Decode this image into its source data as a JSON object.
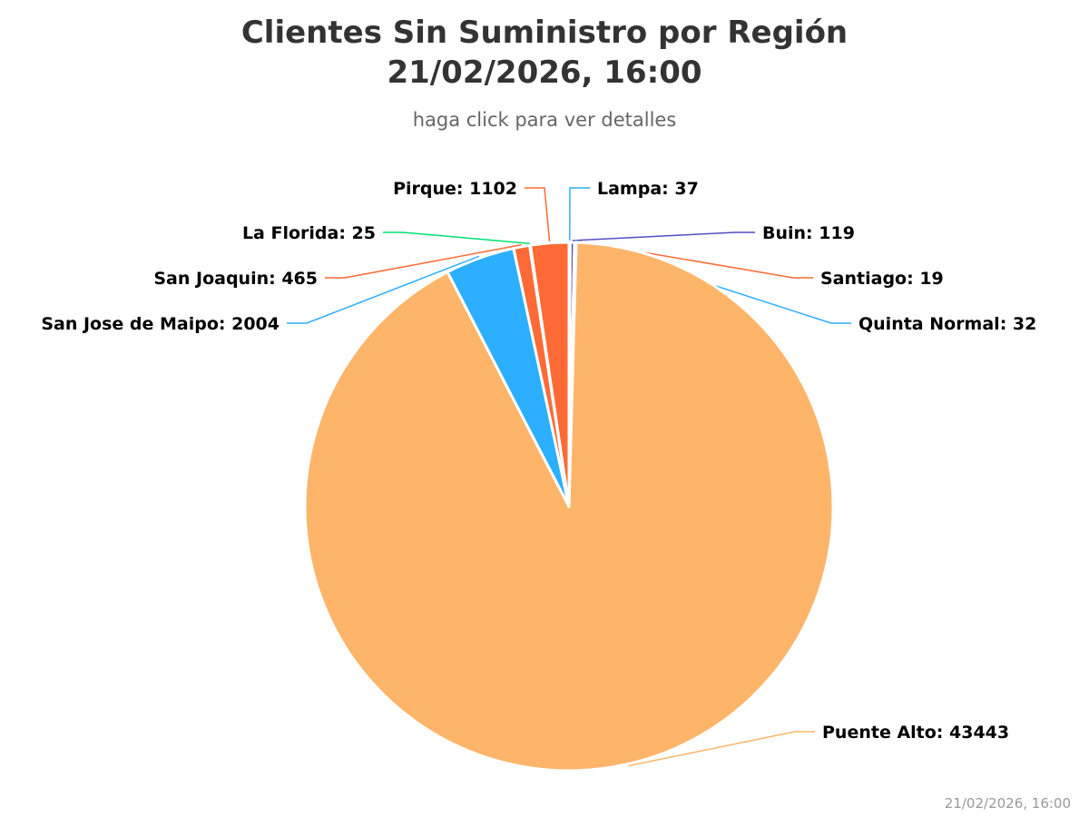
{
  "chart_data": {
    "type": "pie",
    "title": "Clientes Sin Suministro por Región",
    "title_line2": "21/02/2026, 16:00",
    "subtitle": "haga click para ver detalles",
    "credit": "21/02/2026, 16:00",
    "points": [
      {
        "name": "Lampa",
        "value": 37,
        "color": "#2caffe"
      },
      {
        "name": "Buin",
        "value": 119,
        "color": "#544fc5"
      },
      {
        "name": "Santiago",
        "value": 19,
        "color": "#fe6a35"
      },
      {
        "name": "Quinta Normal",
        "value": 32,
        "color": "#2caffe"
      },
      {
        "name": "Puente Alto",
        "value": 43443,
        "color": "#feb56a"
      },
      {
        "name": "San Jose de Maipo",
        "value": 2004,
        "color": "#2caffe"
      },
      {
        "name": "San Joaquin",
        "value": 465,
        "color": "#fe6a35"
      },
      {
        "name": "La Florida",
        "value": 25,
        "color": "#00e272"
      },
      {
        "name": "Pirque",
        "value": 1102,
        "color": "#fe6a35"
      }
    ],
    "data_labels": [
      "Lampa: 37",
      "Buin: 119",
      "Santiago: 19",
      "Quinta Normal: 32",
      "Puente Alto: 43443",
      "San Jose de Maipo: 2004",
      "San Joaquin: 465",
      "La Florida: 25",
      "Pirque: 1102"
    ]
  }
}
